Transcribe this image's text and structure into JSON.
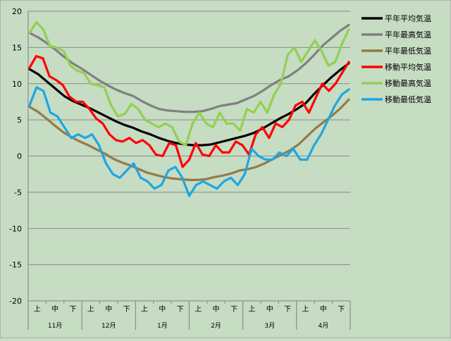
{
  "chart_data": {
    "type": "line",
    "ylim": [
      -20,
      20
    ],
    "yticks": [
      20,
      15,
      10,
      5,
      0,
      -5,
      -10,
      -15,
      -20
    ],
    "grid": "horizontal",
    "legend_position": "right",
    "months": [
      "11月",
      "12月",
      "1月",
      "2月",
      "3月",
      "4月"
    ],
    "periods": [
      "上",
      "中",
      "下"
    ],
    "x_points_per_period": 2,
    "series": [
      {
        "name": "平年平均気温",
        "color": "#000000",
        "values": [
          12.0,
          11.3,
          10.3,
          9.3,
          8.3,
          7.6,
          7.1,
          6.6,
          6.0,
          5.4,
          4.8,
          4.3,
          3.9,
          3.4,
          3.0,
          2.5,
          2.1,
          1.8,
          1.6,
          1.5,
          1.5,
          1.6,
          1.9,
          2.2,
          2.5,
          2.8,
          3.2,
          3.8,
          4.5,
          5.2,
          5.8,
          6.5,
          7.3,
          8.6,
          9.8,
          10.9,
          11.9,
          12.8
        ]
      },
      {
        "name": "平年最高気温",
        "color": "#808080",
        "values": [
          17.0,
          16.4,
          15.6,
          14.7,
          13.7,
          12.8,
          12.1,
          11.3,
          10.5,
          9.8,
          9.2,
          8.7,
          8.3,
          7.6,
          7.0,
          6.5,
          6.3,
          6.2,
          6.1,
          6.1,
          6.2,
          6.5,
          6.9,
          7.1,
          7.3,
          7.8,
          8.3,
          9.0,
          9.8,
          10.5,
          11.0,
          11.8,
          12.8,
          14.0,
          15.3,
          16.3,
          17.3,
          18.1
        ]
      },
      {
        "name": "平年最低気温",
        "color": "#947a4a",
        "values": [
          6.8,
          6.1,
          5.2,
          4.2,
          3.3,
          2.6,
          2.0,
          1.5,
          0.9,
          0.3,
          -0.4,
          -0.9,
          -1.3,
          -1.8,
          -2.3,
          -2.6,
          -2.9,
          -3.1,
          -3.2,
          -3.3,
          -3.3,
          -3.2,
          -2.9,
          -2.7,
          -2.4,
          -2.0,
          -1.8,
          -1.5,
          -1.0,
          -0.4,
          0.2,
          0.8,
          1.6,
          2.7,
          3.8,
          4.7,
          5.6,
          6.6,
          7.8
        ]
      },
      {
        "name": "移動平均気温",
        "color": "#ff0000",
        "values": [
          12.2,
          13.8,
          13.5,
          11.0,
          10.5,
          9.8,
          8.2,
          7.5,
          7.5,
          6.5,
          5.2,
          4.5,
          3.0,
          2.2,
          2.0,
          2.5,
          1.8,
          2.2,
          1.5,
          0.2,
          0.0,
          1.8,
          1.5,
          -1.5,
          -0.5,
          1.8,
          0.2,
          0.0,
          1.5,
          0.5,
          0.5,
          2.0,
          1.5,
          0.2,
          3.0,
          4.0,
          2.5,
          4.5,
          4.0,
          5.0,
          7.0,
          7.5,
          6.0,
          8.0,
          10.0,
          9.0,
          10.0,
          11.5,
          13.0
        ]
      },
      {
        "name": "移動最高気温",
        "color": "#92d050",
        "values": [
          17.0,
          18.5,
          17.5,
          15.2,
          15.0,
          14.5,
          12.5,
          11.8,
          11.5,
          10.0,
          9.8,
          9.5,
          7.0,
          5.5,
          5.8,
          7.2,
          6.5,
          5.0,
          4.5,
          4.0,
          4.5,
          4.0,
          2.0,
          1.5,
          4.5,
          6.0,
          4.5,
          4.0,
          6.0,
          4.5,
          4.5,
          3.5,
          6.5,
          6.0,
          7.5,
          6.0,
          8.5,
          10.0,
          14.0,
          15.0,
          13.0,
          14.5,
          16.0,
          14.5,
          12.5,
          13.0,
          15.5,
          17.5
        ]
      },
      {
        "name": "移動最低気温",
        "color": "#1ca7e3",
        "values": [
          7.0,
          9.5,
          9.0,
          6.0,
          5.5,
          4.0,
          2.5,
          3.0,
          2.5,
          3.0,
          1.5,
          -1.0,
          -2.5,
          -3.0,
          -2.0,
          -1.0,
          -3.0,
          -3.5,
          -4.5,
          -4.0,
          -2.0,
          -1.5,
          -3.0,
          -5.5,
          -4.0,
          -3.5,
          -4.0,
          -4.5,
          -3.5,
          -3.0,
          -4.0,
          -2.5,
          1.0,
          0.0,
          -0.5,
          -0.5,
          0.5,
          0.0,
          1.0,
          -0.5,
          -0.5,
          1.5,
          3.0,
          5.0,
          7.0,
          8.5,
          9.2
        ]
      }
    ]
  }
}
